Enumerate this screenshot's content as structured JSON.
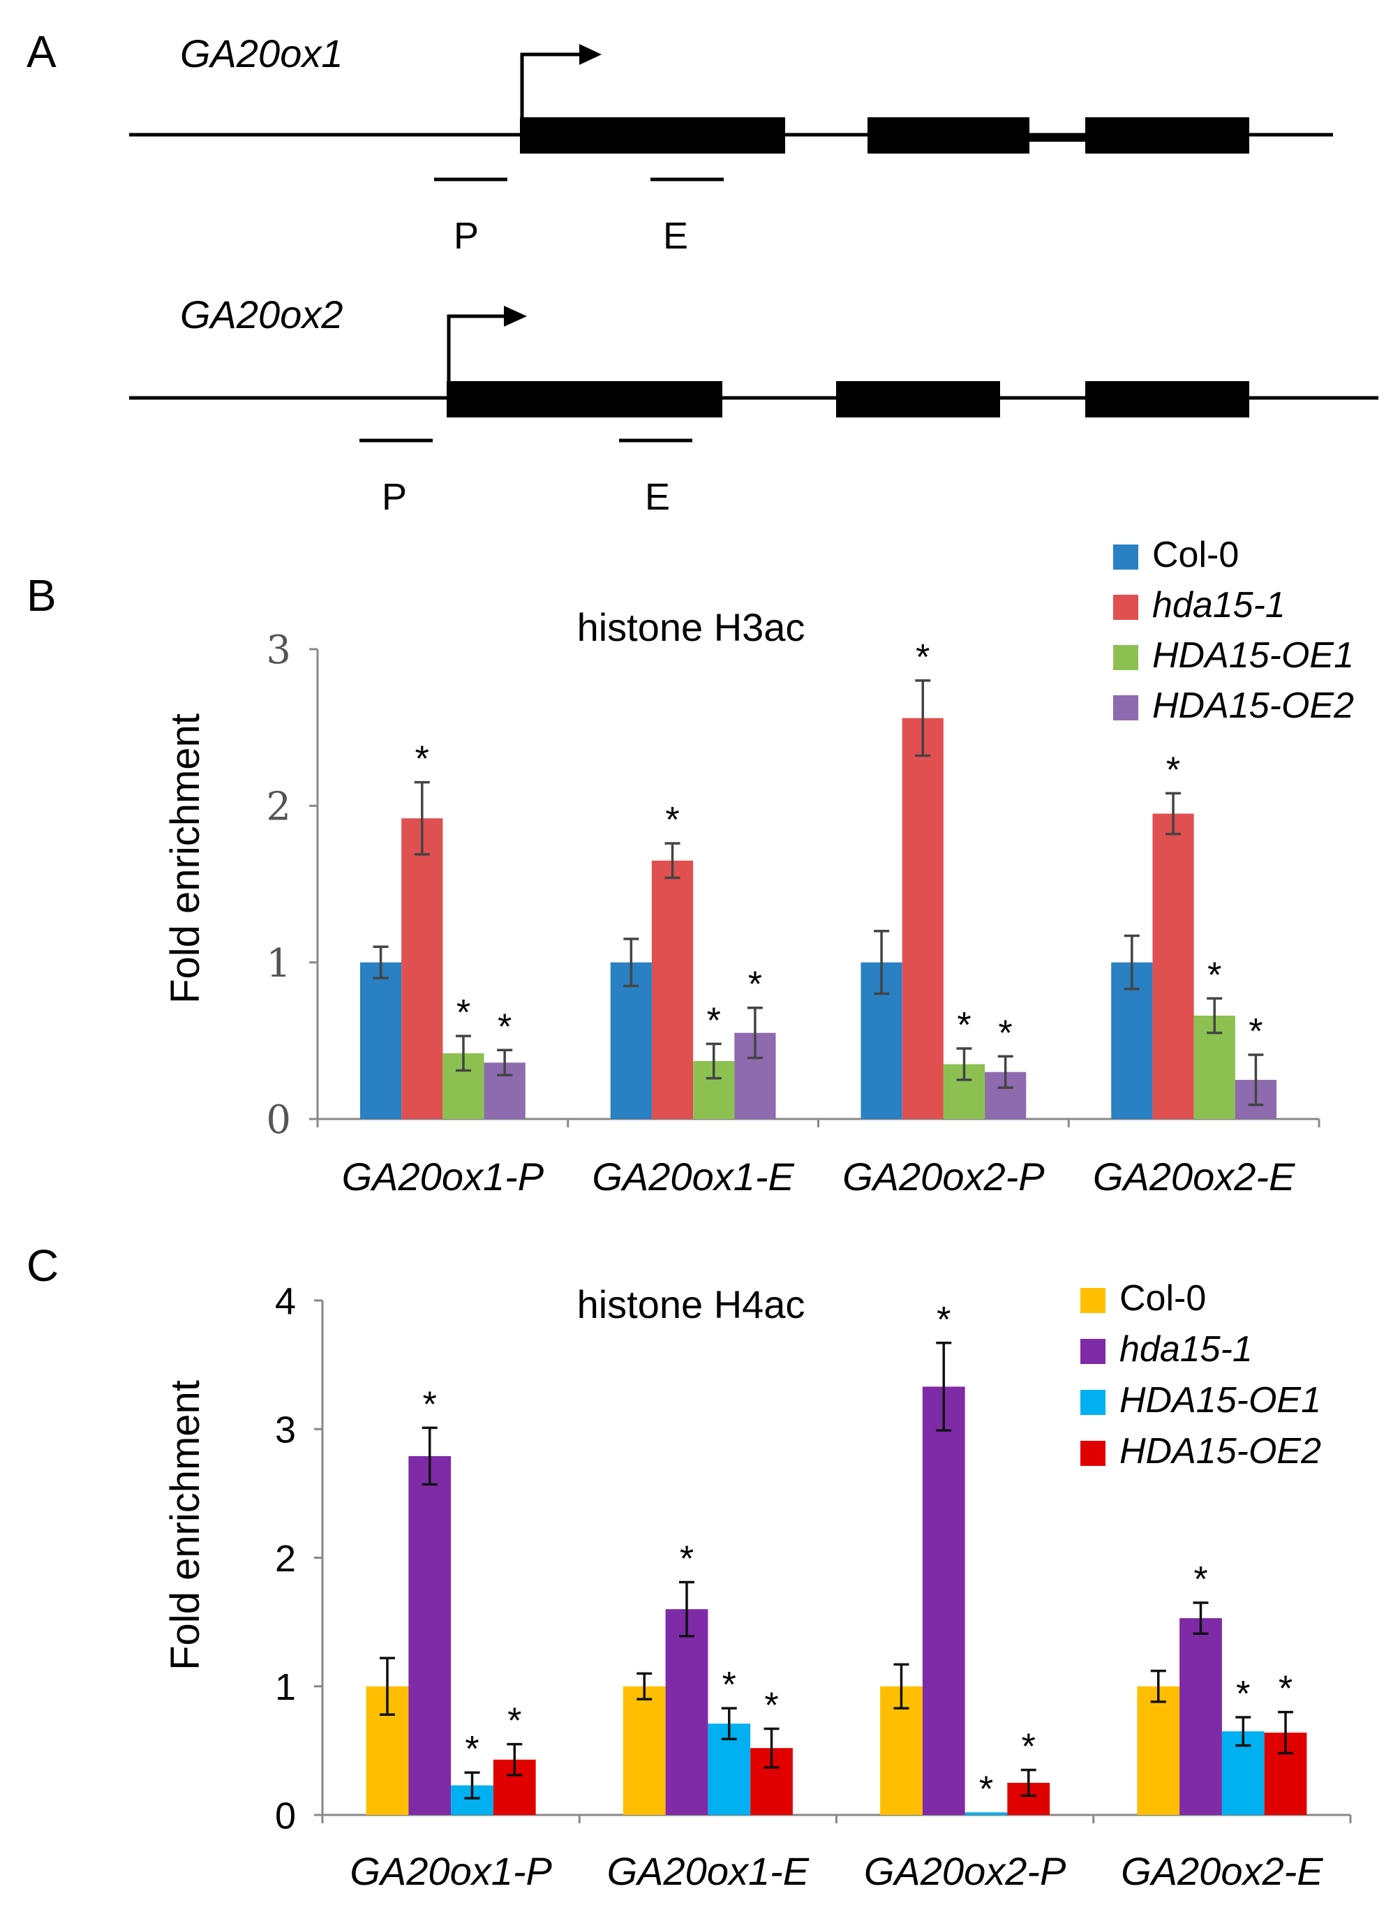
{
  "panel_a": {
    "label": "A",
    "genes": [
      {
        "name": "GA20ox1",
        "promoter_label": "P",
        "exon_label": "E"
      },
      {
        "name": "GA20ox2",
        "promoter_label": "P",
        "exon_label": "E"
      }
    ]
  },
  "chart_data": [
    {
      "panel_label": "B",
      "type": "bar",
      "title": "histone H3ac",
      "xlabel": "",
      "ylabel": "Fold enrichment",
      "ylim": [
        0,
        3
      ],
      "yticks": [
        "0",
        "1",
        "2",
        "3"
      ],
      "categories": [
        "GA20ox1-P",
        "GA20ox1-E",
        "GA20ox2-P",
        "GA20ox2-E"
      ],
      "legend_position": "top-right",
      "series": [
        {
          "name": "Col-0",
          "color": "#2980c2",
          "values": [
            1.0,
            1.0,
            1.0,
            1.0
          ],
          "errors": [
            0.1,
            0.15,
            0.2,
            0.17
          ],
          "sig": [
            "",
            "",
            "",
            ""
          ]
        },
        {
          "name": "hda15-1",
          "color": "#e05050",
          "values": [
            1.92,
            1.65,
            2.56,
            1.95
          ],
          "errors": [
            0.23,
            0.11,
            0.24,
            0.13
          ],
          "sig": [
            "*",
            "*",
            "*",
            "*"
          ]
        },
        {
          "name": "HDA15-OE1",
          "color": "#8cc152",
          "values": [
            0.42,
            0.37,
            0.35,
            0.66
          ],
          "errors": [
            0.11,
            0.11,
            0.1,
            0.11
          ],
          "sig": [
            "*",
            "*",
            "*",
            "*"
          ]
        },
        {
          "name": "HDA15-OE2",
          "color": "#8e6aae",
          "values": [
            0.36,
            0.55,
            0.3,
            0.25
          ],
          "errors": [
            0.08,
            0.16,
            0.1,
            0.16
          ],
          "sig": [
            "*",
            "*",
            "*",
            "*"
          ]
        }
      ]
    },
    {
      "panel_label": "C",
      "type": "bar",
      "title": "histone H4ac",
      "xlabel": "",
      "ylabel": "Fold enrichment",
      "ylim": [
        0,
        4
      ],
      "yticks": [
        "0",
        "1",
        "2",
        "3",
        "4"
      ],
      "categories": [
        "GA20ox1-P",
        "GA20ox1-E",
        "GA20ox2-P",
        "GA20ox2-E"
      ],
      "legend_position": "top-right",
      "series": [
        {
          "name": "Col-0",
          "color": "#ffbf00",
          "values": [
            1.0,
            1.0,
            1.0,
            1.0
          ],
          "errors": [
            0.22,
            0.1,
            0.17,
            0.12
          ],
          "sig": [
            "",
            "",
            "",
            ""
          ]
        },
        {
          "name": "hda15-1",
          "color": "#7f2aa6",
          "values": [
            2.79,
            1.6,
            3.33,
            1.53
          ],
          "errors": [
            0.22,
            0.21,
            0.34,
            0.12
          ],
          "sig": [
            "*",
            "*",
            "*",
            "*"
          ]
        },
        {
          "name": "HDA15-OE1",
          "color": "#00b0f0",
          "values": [
            0.23,
            0.71,
            0.02,
            0.65
          ],
          "errors": [
            0.1,
            0.12,
            0.0,
            0.11
          ],
          "sig": [
            "*",
            "*",
            "*",
            "*"
          ]
        },
        {
          "name": "HDA15-OE2",
          "color": "#e00000",
          "values": [
            0.43,
            0.52,
            0.25,
            0.64
          ],
          "errors": [
            0.12,
            0.15,
            0.1,
            0.16
          ],
          "sig": [
            "*",
            "*",
            "*",
            "*"
          ]
        }
      ]
    }
  ]
}
